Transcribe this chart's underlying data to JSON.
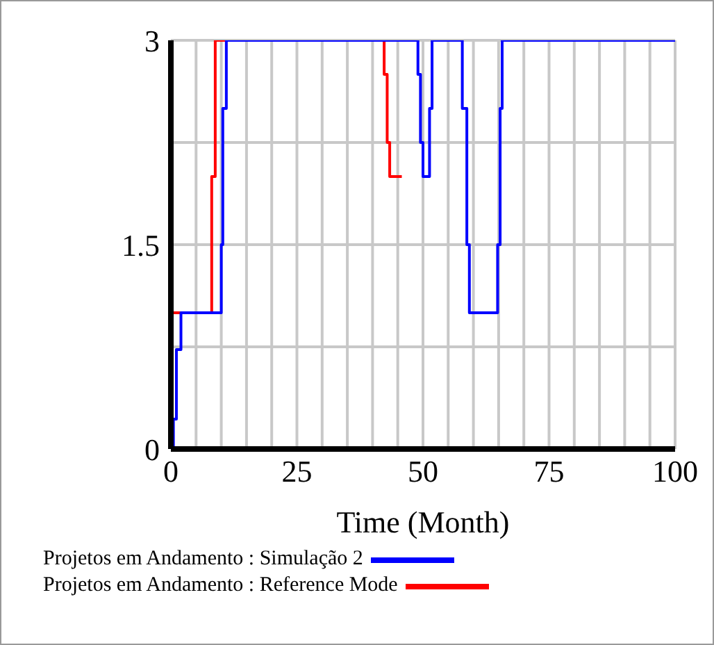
{
  "chart_data": {
    "type": "line",
    "xlabel": "Time (Month)",
    "xlim": [
      0,
      100
    ],
    "xticks": [
      0,
      {
        "value": 5,
        "label": null
      },
      {
        "value": 10,
        "label": null
      },
      {
        "value": 15,
        "label": null
      },
      {
        "value": 20,
        "label": null
      },
      25,
      {
        "value": 30,
        "label": null
      },
      {
        "value": 35,
        "label": null
      },
      {
        "value": 40,
        "label": null
      },
      {
        "value": 45,
        "label": null
      },
      50,
      {
        "value": 55,
        "label": null
      },
      {
        "value": 60,
        "label": null
      },
      {
        "value": 65,
        "label": null
      },
      {
        "value": 70,
        "label": null
      },
      75,
      {
        "value": 80,
        "label": null
      },
      {
        "value": 85,
        "label": null
      },
      {
        "value": 90,
        "label": null
      },
      {
        "value": 95,
        "label": null
      },
      100
    ],
    "ylim": [
      0,
      3
    ],
    "yticks": [
      0,
      {
        "value": 0.75,
        "label": null
      },
      1.5,
      {
        "value": 2.25,
        "label": null
      },
      3
    ],
    "grid": true,
    "legend": "bottom",
    "marker": "none",
    "line_style": "solid",
    "series": [
      {
        "name": "Projetos em Andamento : Reference Mode",
        "color": "#ff0000",
        "x": [
          0,
          8.1,
          8.1,
          8.8,
          8.8,
          42.3,
          42.3,
          42.9,
          42.9,
          43.4,
          43.4,
          45.8
        ],
        "values": [
          1,
          1,
          2,
          2,
          3,
          3,
          2.75,
          2.75,
          2.25,
          2.25,
          2,
          2
        ]
      },
      {
        "name": "Projetos em Andamento : Simulação 2",
        "color": "#0000ff",
        "x": [
          0.5,
          0.5,
          1.1,
          1.1,
          2,
          2,
          10,
          10,
          10.3,
          10.3,
          11,
          11,
          49,
          49,
          49.5,
          49.5,
          50,
          50,
          51.3,
          51.3,
          51.8,
          51.8,
          57.8,
          57.8,
          58.7,
          58.7,
          59.2,
          59.2,
          64.8,
          64.8,
          65.3,
          65.3,
          65.7,
          65.7,
          100
        ],
        "values": [
          0,
          0.22,
          0.22,
          0.73,
          0.73,
          1,
          1,
          1.5,
          1.5,
          2.5,
          2.5,
          3,
          3,
          2.75,
          2.75,
          2.25,
          2.25,
          2,
          2,
          2.5,
          2.5,
          3,
          3,
          2.5,
          2.5,
          1.5,
          1.5,
          1,
          1,
          1.5,
          1.5,
          2.5,
          2.5,
          3,
          3
        ]
      }
    ]
  }
}
